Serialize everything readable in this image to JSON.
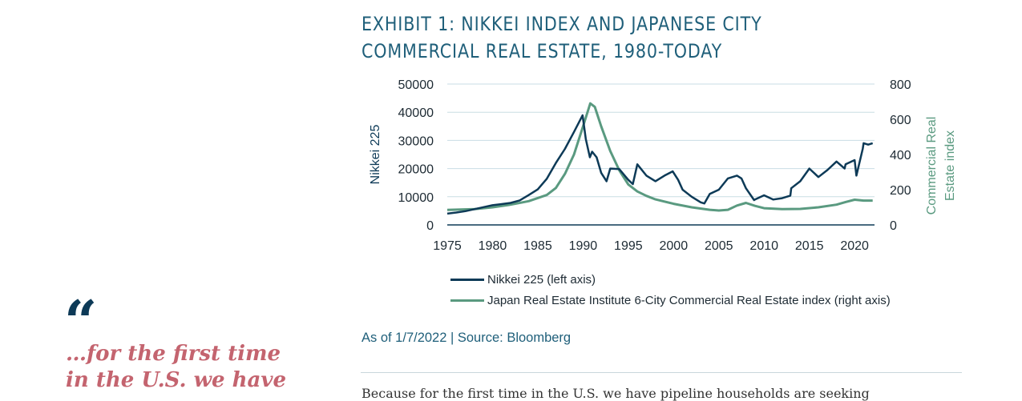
{
  "pull_quote": {
    "mark": "“",
    "lines": [
      "…for the first time",
      "in the U.S. we have"
    ]
  },
  "exhibit": {
    "title_lines": [
      "EXHIBIT 1: NIKKEI INDEX AND JAPANESE CITY",
      "COMMERCIAL REAL ESTATE, 1980-TODAY"
    ],
    "source": "As of 1/7/2022 | Source: Bloomberg"
  },
  "body_text_partial": "Because for the first time in the U.S. we have pipeline households are seeking",
  "colors": {
    "nikkei": "#0d3a57",
    "real_estate": "#5a9a80",
    "title": "#1f5f7a",
    "grid": "#c9dde4"
  },
  "chart_data": {
    "type": "line",
    "title": "EXHIBIT 1: NIKKEI INDEX AND JAPANESE CITY COMMERCIAL REAL ESTATE, 1980-TODAY",
    "xlabel": "",
    "ylabel": "Nikkei 225",
    "ylabel_right": [
      "Commercial Real",
      "Estate index"
    ],
    "xlim": [
      1975,
      2022.2
    ],
    "x_ticks": [
      "1975",
      "1980",
      "1985",
      "1990",
      "1995",
      "2000",
      "2005",
      "2010",
      "2015",
      "2020"
    ],
    "ylim": [
      0,
      50000
    ],
    "y_ticks": [
      "0",
      "10000",
      "20000",
      "30000",
      "40000",
      "50000"
    ],
    "ylim_right": [
      0,
      800
    ],
    "y_ticks_right": [
      "0",
      "200",
      "400",
      "600",
      "800"
    ],
    "grid": true,
    "legend_position": "bottom",
    "series": [
      {
        "name": "Nikkei 225 (left axis)",
        "axis": "left",
        "x": [
          1975,
          1976,
          1977,
          1978,
          1979,
          1980,
          1981,
          1982,
          1983,
          1984,
          1985,
          1986,
          1987,
          1988,
          1989,
          1989.95,
          1990.3,
          1990.75,
          1991,
          1991.5,
          1992,
          1992.6,
          1993,
          1994,
          1995,
          1995.5,
          1996,
          1997,
          1998,
          1999,
          1999.9,
          2000.5,
          2001,
          2002,
          2003,
          2003.4,
          2004,
          2005,
          2006,
          2007,
          2007.5,
          2008,
          2008.9,
          2009,
          2010,
          2011,
          2012,
          2012.9,
          2013,
          2014,
          2015,
          2016,
          2017,
          2018,
          2018.9,
          2019,
          2020,
          2020.2,
          2020.9,
          2021,
          2021.5,
          2022
        ],
        "y": [
          4000,
          4400,
          4900,
          5600,
          6300,
          7000,
          7400,
          7800,
          8700,
          10600,
          12600,
          16400,
          22000,
          27000,
          33000,
          38900,
          30500,
          24000,
          26000,
          24000,
          18500,
          15500,
          20000,
          19800,
          16000,
          14500,
          21500,
          17500,
          15500,
          17500,
          19000,
          16000,
          12500,
          10000,
          8000,
          7600,
          11000,
          12500,
          16500,
          17500,
          16500,
          13000,
          8800,
          9000,
          10500,
          9000,
          9500,
          10400,
          13000,
          15500,
          20000,
          17000,
          19500,
          22500,
          20000,
          21500,
          23000,
          17500,
          27000,
          29000,
          28500,
          29000
        ]
      },
      {
        "name": "Japan Real Estate Institute 6-City Commercial Real Estate index (right axis)",
        "axis": "right",
        "x": [
          1975,
          1978,
          1980,
          1982,
          1984,
          1986,
          1987,
          1988,
          1989,
          1990,
          1990.8,
          1991.3,
          1992,
          1993,
          1994,
          1995,
          1996,
          1997,
          1998,
          2000,
          2002,
          2004,
          2005,
          2006,
          2007,
          2008,
          2009,
          2010,
          2012,
          2014,
          2016,
          2018,
          2019,
          2020,
          2021,
          2022
        ],
        "y": [
          85,
          90,
          100,
          115,
          135,
          170,
          210,
          290,
          400,
          560,
          690,
          670,
          560,
          420,
          310,
          230,
          190,
          165,
          145,
          120,
          100,
          86,
          82,
          86,
          110,
          125,
          108,
          95,
          90,
          91,
          100,
          115,
          130,
          143,
          138,
          138
        ]
      }
    ]
  }
}
